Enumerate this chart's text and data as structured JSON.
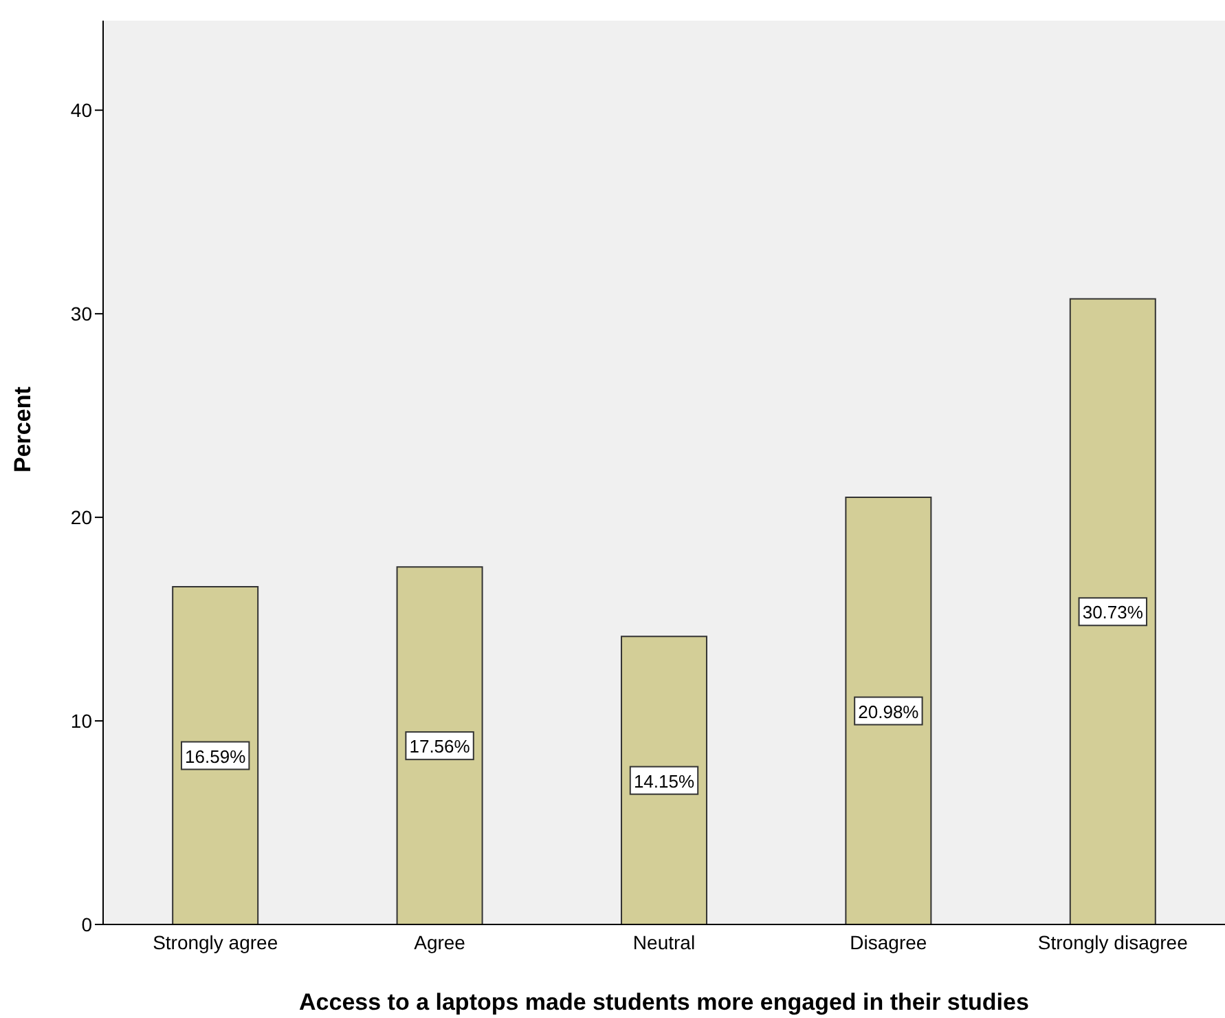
{
  "chart_data": {
    "type": "bar",
    "xlabel": "Access to a laptops made students more engaged in their studies",
    "ylabel": "Percent",
    "categories": [
      "Strongly agree",
      "Agree",
      "Neutral",
      "Disagree",
      "Strongly disagree"
    ],
    "values": [
      16.59,
      17.56,
      14.15,
      20.98,
      30.73
    ],
    "value_labels": [
      "16.59%",
      "17.56%",
      "14.15%",
      "20.98%",
      "30.73%"
    ],
    "color": "#d3ce97",
    "ylim": [
      0,
      44.4
    ],
    "yticks": [
      0,
      10,
      20,
      30,
      40
    ],
    "grid": false
  }
}
